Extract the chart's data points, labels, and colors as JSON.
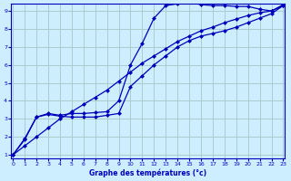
{
  "xlabel": "Graphe des températures (°c)",
  "bg_color": "#cceeff",
  "line_color": "#0000bb",
  "grid_color": "#aacccc",
  "xmin": 0,
  "xmax": 23,
  "ymin": 1,
  "ymax": 9,
  "xticks": [
    0,
    1,
    2,
    3,
    4,
    5,
    6,
    7,
    8,
    9,
    10,
    11,
    12,
    13,
    14,
    15,
    16,
    17,
    18,
    19,
    20,
    21,
    22,
    23
  ],
  "yticks": [
    1,
    2,
    3,
    4,
    5,
    6,
    7,
    8,
    9
  ],
  "line1_x": [
    0,
    1,
    2,
    3,
    4,
    5,
    6,
    7,
    8,
    9,
    10,
    11,
    12,
    13,
    14,
    15,
    16,
    17,
    18,
    19,
    20,
    21,
    22,
    23
  ],
  "line1_y": [
    1.0,
    1.9,
    3.1,
    3.3,
    3.2,
    3.3,
    3.3,
    3.35,
    3.4,
    4.0,
    6.0,
    7.2,
    8.6,
    9.3,
    9.4,
    9.5,
    9.35,
    9.3,
    9.3,
    9.25,
    9.25,
    9.1,
    9.0,
    9.35
  ],
  "line2_x": [
    0,
    1,
    2,
    3,
    4,
    5,
    6,
    7,
    8,
    9,
    10,
    11,
    12,
    13,
    14,
    15,
    16,
    17,
    18,
    19,
    20,
    21,
    22,
    23
  ],
  "line2_y": [
    1.0,
    1.5,
    2.0,
    2.5,
    3.0,
    3.4,
    3.8,
    4.2,
    4.6,
    5.1,
    5.6,
    6.1,
    6.5,
    6.9,
    7.3,
    7.6,
    7.9,
    8.1,
    8.35,
    8.55,
    8.75,
    8.9,
    9.0,
    9.3
  ],
  "line3_x": [
    0,
    1,
    2,
    3,
    4,
    5,
    6,
    7,
    8,
    9,
    10,
    11,
    12,
    13,
    14,
    15,
    16,
    17,
    18,
    19,
    20,
    21,
    22,
    23
  ],
  "line3_y": [
    1.0,
    1.85,
    3.1,
    3.25,
    3.15,
    3.1,
    3.1,
    3.1,
    3.2,
    3.3,
    4.8,
    5.4,
    6.0,
    6.5,
    7.0,
    7.35,
    7.6,
    7.75,
    7.9,
    8.1,
    8.35,
    8.6,
    8.85,
    9.3
  ]
}
